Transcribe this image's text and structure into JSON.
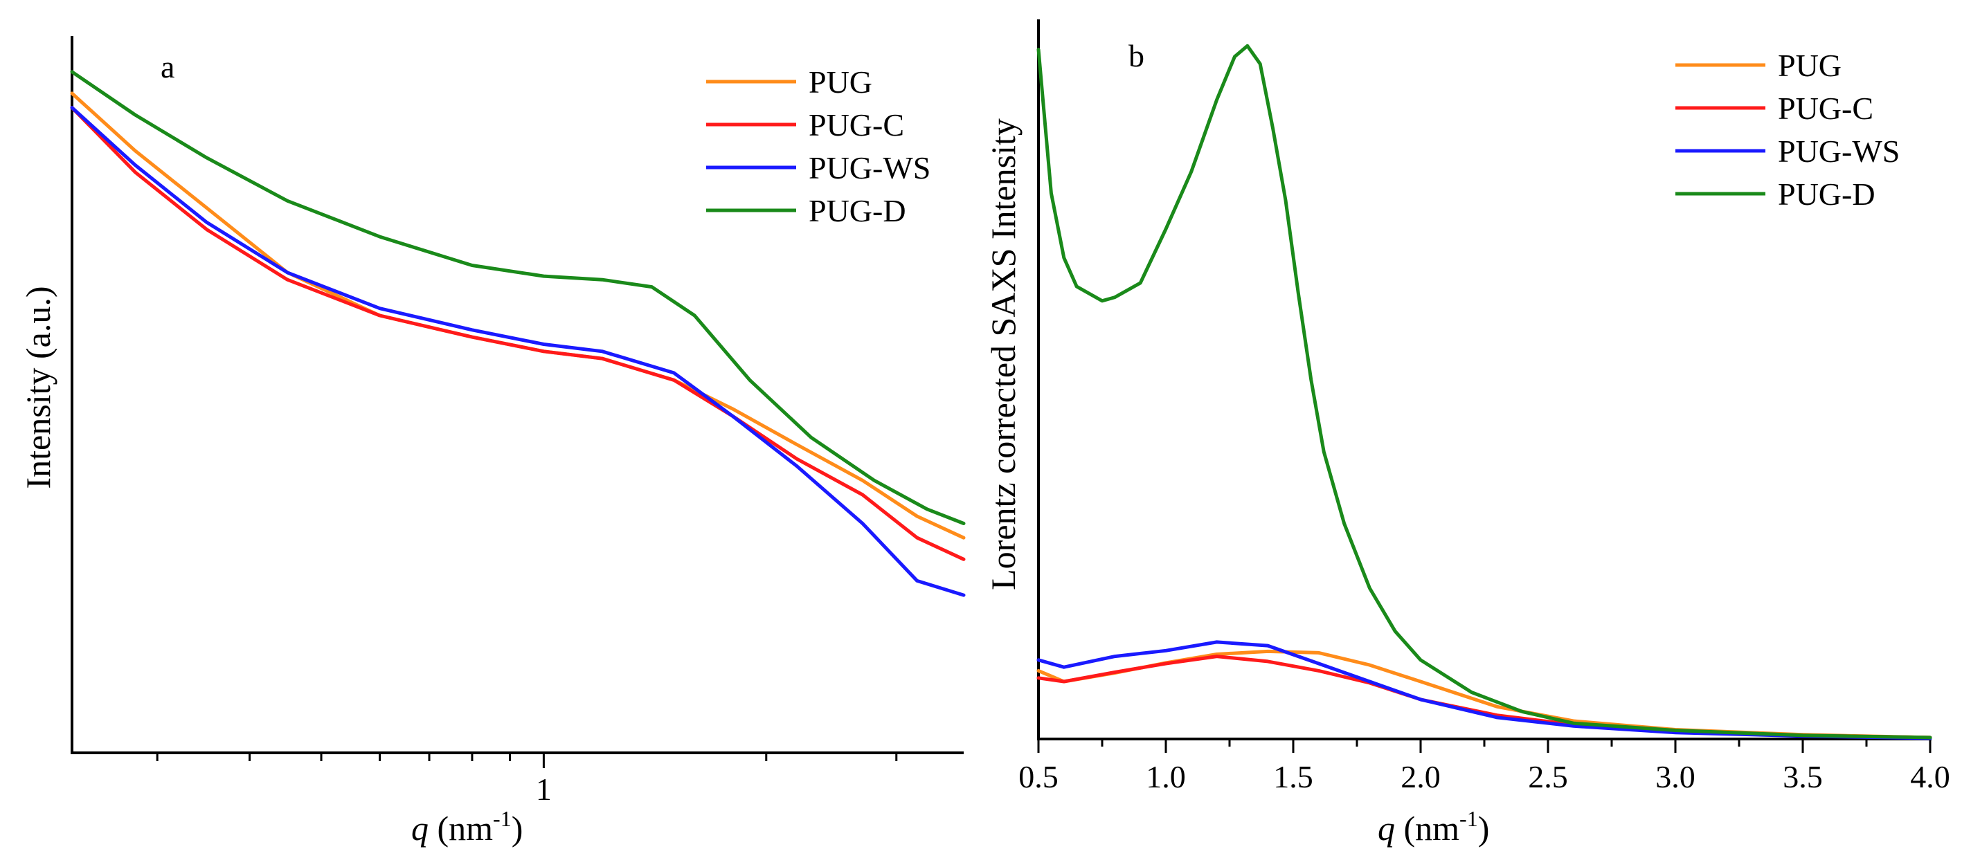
{
  "chart_data": [
    {
      "panel": "a",
      "type": "line",
      "panel_label": "a",
      "xlabel_italic": "q",
      "xlabel_rest": " (nm",
      "xlabel_sup": "-1",
      "xlabel_close": ")",
      "ylabel": "Intensity (a.u.)",
      "xscale": "log",
      "xlim": [
        0.23,
        3.7
      ],
      "ylim_log": [
        0.0,
        1.0
      ],
      "x_tick_labels": [
        {
          "value": 1,
          "label": "1"
        }
      ],
      "x_minor_ticks": [
        0.3,
        0.4,
        0.5,
        0.6,
        0.7,
        0.8,
        0.9,
        2,
        3
      ],
      "y_ticks_shown": false,
      "legend_position": "top-right",
      "series": [
        {
          "name": "PUG",
          "color": "#ff8c1a",
          "x": [
            0.23,
            0.28,
            0.35,
            0.45,
            0.6,
            0.8,
            1.0,
            1.2,
            1.5,
            1.8,
            2.2,
            2.7,
            3.2,
            3.7
          ],
          "y": [
            0.92,
            0.84,
            0.76,
            0.67,
            0.61,
            0.58,
            0.56,
            0.55,
            0.52,
            0.48,
            0.43,
            0.38,
            0.33,
            0.3
          ]
        },
        {
          "name": "PUG-C",
          "color": "#ff1a1a",
          "x": [
            0.23,
            0.28,
            0.35,
            0.45,
            0.6,
            0.8,
            1.0,
            1.2,
            1.5,
            1.8,
            2.2,
            2.7,
            3.2,
            3.7
          ],
          "y": [
            0.9,
            0.81,
            0.73,
            0.66,
            0.61,
            0.58,
            0.56,
            0.55,
            0.52,
            0.47,
            0.41,
            0.36,
            0.3,
            0.27
          ]
        },
        {
          "name": "PUG-WS",
          "color": "#1a1aff",
          "x": [
            0.23,
            0.28,
            0.35,
            0.45,
            0.6,
            0.8,
            1.0,
            1.2,
            1.5,
            1.8,
            2.2,
            2.7,
            3.2,
            3.7
          ],
          "y": [
            0.9,
            0.82,
            0.74,
            0.67,
            0.62,
            0.59,
            0.57,
            0.56,
            0.53,
            0.47,
            0.4,
            0.32,
            0.24,
            0.22
          ]
        },
        {
          "name": "PUG-D",
          "color": "#1a8a1a",
          "x": [
            0.23,
            0.28,
            0.35,
            0.45,
            0.6,
            0.8,
            1.0,
            1.2,
            1.4,
            1.6,
            1.9,
            2.3,
            2.8,
            3.3,
            3.7
          ],
          "y": [
            0.95,
            0.89,
            0.83,
            0.77,
            0.72,
            0.68,
            0.665,
            0.66,
            0.65,
            0.61,
            0.52,
            0.44,
            0.38,
            0.34,
            0.32
          ]
        }
      ]
    },
    {
      "panel": "b",
      "type": "line",
      "panel_label": "b",
      "xlabel_italic": "q",
      "xlabel_rest": " (nm",
      "xlabel_sup": "-1",
      "xlabel_close": ")",
      "ylabel": "Lorentz corrected SAXS Intensity",
      "xscale": "linear",
      "xlim": [
        0.5,
        4.0
      ],
      "ylim": [
        0,
        100
      ],
      "x_tick_values": [
        0.5,
        1.0,
        1.5,
        2.0,
        2.5,
        3.0,
        3.5,
        4.0
      ],
      "x_tick_labels": [
        "0.5",
        "1.0",
        "1.5",
        "2.0",
        "2.5",
        "3.0",
        "3.5",
        "4.0"
      ],
      "y_ticks_shown": false,
      "legend_position": "top-right",
      "series": [
        {
          "name": "PUG",
          "color": "#ff8c1a",
          "x": [
            0.5,
            0.6,
            0.8,
            1.0,
            1.2,
            1.4,
            1.6,
            1.8,
            2.0,
            2.3,
            2.6,
            3.0,
            3.5,
            4.0
          ],
          "y": [
            9.5,
            8.0,
            9.2,
            10.6,
            11.8,
            12.2,
            12.0,
            10.3,
            8.0,
            4.5,
            2.5,
            1.3,
            0.6,
            0.2
          ]
        },
        {
          "name": "PUG-C",
          "color": "#ff1a1a",
          "x": [
            0.5,
            0.6,
            0.8,
            1.0,
            1.2,
            1.4,
            1.6,
            1.8,
            2.0,
            2.3,
            2.6,
            3.0,
            3.5,
            4.0
          ],
          "y": [
            8.5,
            8.0,
            9.3,
            10.5,
            11.5,
            10.8,
            9.5,
            7.8,
            5.5,
            3.3,
            2.0,
            1.1,
            0.5,
            0.2
          ]
        },
        {
          "name": "PUG-WS",
          "color": "#1a1aff",
          "x": [
            0.5,
            0.6,
            0.8,
            1.0,
            1.2,
            1.4,
            1.6,
            1.8,
            2.0,
            2.3,
            2.6,
            3.0,
            3.5,
            4.0
          ],
          "y": [
            11.0,
            10.0,
            11.5,
            12.3,
            13.5,
            13.0,
            10.5,
            8.0,
            5.5,
            3.0,
            1.8,
            0.9,
            0.4,
            0.1
          ]
        },
        {
          "name": "PUG-D",
          "color": "#1a8a1a",
          "x": [
            0.5,
            0.55,
            0.6,
            0.65,
            0.7,
            0.75,
            0.8,
            0.9,
            1.0,
            1.1,
            1.2,
            1.27,
            1.32,
            1.37,
            1.42,
            1.47,
            1.52,
            1.57,
            1.62,
            1.7,
            1.8,
            1.9,
            2.0,
            2.2,
            2.4,
            2.6,
            3.0,
            3.5,
            4.0
          ],
          "y": [
            96,
            76,
            67,
            63,
            62,
            61,
            61.5,
            63.5,
            71,
            79,
            89,
            95,
            96.5,
            94,
            85,
            75,
            62,
            50,
            40,
            30,
            21,
            15,
            11,
            6.5,
            3.8,
            2.2,
            1.2,
            0.5,
            0.2
          ]
        }
      ]
    }
  ]
}
